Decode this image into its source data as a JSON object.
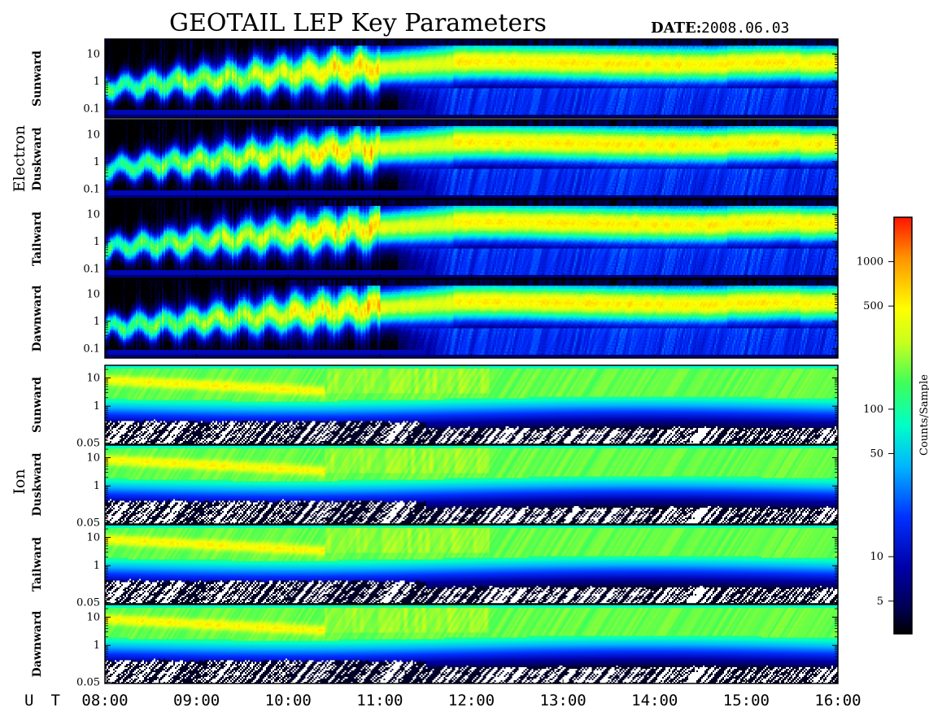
{
  "header": {
    "title": "GEOTAIL LEP Key Parameters",
    "date_label": "DATE:",
    "date_value": "2008.06.03"
  },
  "groups": [
    {
      "name": "Electron"
    },
    {
      "name": "Ion"
    }
  ],
  "chart_data": {
    "type": "heatmap",
    "title": "GEOTAIL LEP Key Parameters",
    "x": {
      "prefix": "U T",
      "range": [
        "08:00",
        "16:00"
      ],
      "ticks": [
        "08:00",
        "09:00",
        "10:00",
        "11:00",
        "12:00",
        "13:00",
        "14:00",
        "15:00",
        "16:00"
      ]
    },
    "panels": [
      {
        "group": "Electron",
        "direction": "Sunward",
        "y_scale": "log",
        "y_ticks": [
          "10",
          "1",
          "0.1"
        ],
        "y_values": [
          10,
          1,
          0.1
        ]
      },
      {
        "group": "Electron",
        "direction": "Duskward",
        "y_scale": "log",
        "y_ticks": [
          "10",
          "1",
          "0.1"
        ],
        "y_values": [
          10,
          1,
          0.1
        ]
      },
      {
        "group": "Electron",
        "direction": "Tailward",
        "y_scale": "log",
        "y_ticks": [
          "10",
          "1",
          "0.1"
        ],
        "y_values": [
          10,
          1,
          0.1
        ]
      },
      {
        "group": "Electron",
        "direction": "Dawnward",
        "y_scale": "log",
        "y_ticks": [
          "10",
          "1",
          "0.1"
        ],
        "y_values": [
          10,
          1,
          0.1
        ]
      },
      {
        "group": "Ion",
        "direction": "Sunward",
        "y_scale": "log",
        "y_ticks": [
          "10",
          "1",
          "0.05"
        ],
        "y_values": [
          10,
          1,
          0.05
        ]
      },
      {
        "group": "Ion",
        "direction": "Duskward",
        "y_scale": "log",
        "y_ticks": [
          "10",
          "1",
          "0.05"
        ],
        "y_values": [
          10,
          1,
          0.05
        ]
      },
      {
        "group": "Ion",
        "direction": "Tailward",
        "y_scale": "log",
        "y_ticks": [
          "10",
          "1",
          "0.05"
        ],
        "y_values": [
          10,
          1,
          0.05
        ]
      },
      {
        "group": "Ion",
        "direction": "Dawnward",
        "y_scale": "log",
        "y_ticks": [
          "10",
          "1",
          "0.05"
        ],
        "y_values": [
          10,
          1,
          0.05
        ]
      }
    ],
    "colorbar": {
      "label": "Counts/Sample",
      "scale": "log",
      "range": [
        3,
        2000
      ],
      "ticks": [
        "1000",
        "500",
        "100",
        "50",
        "10",
        "5"
      ],
      "tick_values": [
        1000,
        500,
        100,
        50,
        10,
        5
      ],
      "colors": [
        "#000000",
        "#0000a0",
        "#0030ff",
        "#00c8ff",
        "#00ff9a",
        "#b4ff3c",
        "#ffff00",
        "#ff9800",
        "#ff0000"
      ]
    }
  }
}
